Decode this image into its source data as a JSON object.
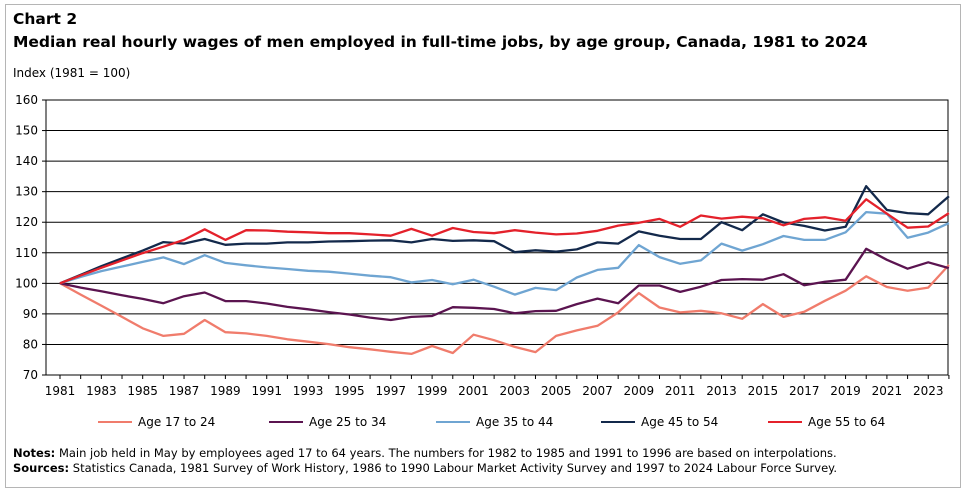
{
  "chart_label": "Chart 2",
  "title": "Median real hourly wages of men employed in full-time jobs, by age group, Canada, 1981 to 2024",
  "unit_label": "Index (1981 = 100)",
  "legend": [
    {
      "label": "Age 17 to 24",
      "color": "#f07c6c"
    },
    {
      "label": "Age 25 to 34",
      "color": "#5b1450"
    },
    {
      "label": "Age 35 to 44",
      "color": "#6fa5d2"
    },
    {
      "label": "Age 45 to 54",
      "color": "#13294b"
    },
    {
      "label": "Age 55 to 64",
      "color": "#e4212b"
    }
  ],
  "notes": {
    "notes_label": "Notes:",
    "notes_text": "Main job held in May by employees aged 17 to 64 years. The numbers for 1982 to 1985 and 1991 to 1996 are based on interpolations.",
    "sources_label": "Sources:",
    "sources_text": "Statistics Canada, 1981 Survey of Work History, 1986 to 1990 Labour Market Activity Survey and 1997 to 2024 Labour Force Survey."
  },
  "chart_data": {
    "type": "line",
    "ylim": [
      70,
      160
    ],
    "yticks": [
      70,
      80,
      90,
      100,
      110,
      120,
      130,
      140,
      150,
      160
    ],
    "x": [
      1981,
      1982,
      1983,
      1984,
      1985,
      1986,
      1987,
      1988,
      1989,
      1990,
      1991,
      1992,
      1993,
      1994,
      1995,
      1996,
      1997,
      1998,
      1999,
      2000,
      2001,
      2002,
      2003,
      2004,
      2005,
      2006,
      2007,
      2008,
      2009,
      2010,
      2011,
      2012,
      2013,
      2014,
      2015,
      2016,
      2017,
      2018,
      2019,
      2020,
      2021,
      2022,
      2023,
      2024
    ],
    "xtick_labels": [
      "1981",
      "1983",
      "1985",
      "1987",
      "1989",
      "1991",
      "1993",
      "1995",
      "1997",
      "1999",
      "2001",
      "2003",
      "2005",
      "2007",
      "2009",
      "2011",
      "2013",
      "2015",
      "2017",
      "2019",
      "2021",
      "2023"
    ],
    "grid": true,
    "legend_position": "bottom",
    "series": [
      {
        "name": "Age 17 to 24",
        "color": "#f07c6c",
        "values": [
          100,
          96.3,
          92.7,
          89.0,
          85.3,
          82.8,
          83.5,
          88.0,
          84.0,
          83.6,
          82.8,
          81.7,
          80.9,
          80.1,
          79.1,
          78.4,
          77.6,
          76.9,
          79.5,
          77.2,
          83.2,
          81.4,
          79.2,
          77.5,
          82.8,
          84.6,
          86.1,
          90.5,
          96.8,
          92.1,
          90.5,
          91.0,
          90.2,
          88.4,
          93.2,
          89.0,
          90.7,
          94.3,
          97.6,
          102.3,
          98.8,
          97.6,
          98.6,
          106.0
        ]
      },
      {
        "name": "Age 25 to 34",
        "color": "#5b1450",
        "values": [
          100,
          98.6,
          97.4,
          96.1,
          94.9,
          93.5,
          95.8,
          97.0,
          94.2,
          94.2,
          93.4,
          92.3,
          91.5,
          90.6,
          89.8,
          88.8,
          88.0,
          89.0,
          89.3,
          92.2,
          92.0,
          91.6,
          90.2,
          90.9,
          91.0,
          93.2,
          95.0,
          93.5,
          99.3,
          99.3,
          97.2,
          98.9,
          101.1,
          101.4,
          101.2,
          103.0,
          99.4,
          100.5,
          101.2,
          111.3,
          107.7,
          104.8,
          106.9,
          105.0
        ]
      },
      {
        "name": "Age 35 to 44",
        "color": "#6fa5d2",
        "values": [
          100,
          102.1,
          104.0,
          105.5,
          107.0,
          108.5,
          106.3,
          109.2,
          106.7,
          105.9,
          105.2,
          104.7,
          104.1,
          103.8,
          103.2,
          102.5,
          102.0,
          100.3,
          101.1,
          99.7,
          101.2,
          98.9,
          96.3,
          98.5,
          97.8,
          101.9,
          104.4,
          105.1,
          112.5,
          108.6,
          106.4,
          107.5,
          113.0,
          110.7,
          112.8,
          115.5,
          114.2,
          114.2,
          116.7,
          123.3,
          122.8,
          114.9,
          116.6,
          119.7
        ]
      },
      {
        "name": "Age 45 to 54",
        "color": "#13294b",
        "values": [
          100,
          102.8,
          105.6,
          108.2,
          110.7,
          113.5,
          113.0,
          114.5,
          112.6,
          113.0,
          113.0,
          113.4,
          113.4,
          113.7,
          113.8,
          114.0,
          114.1,
          113.4,
          114.5,
          113.9,
          114.1,
          113.8,
          110.2,
          110.8,
          110.4,
          111.1,
          113.4,
          113.0,
          117.0,
          115.6,
          114.5,
          114.5,
          120.0,
          117.4,
          122.6,
          119.9,
          118.8,
          117.3,
          118.5,
          131.8,
          124.0,
          123.0,
          122.6,
          128.5
        ]
      },
      {
        "name": "Age 55 to 64",
        "color": "#e4212b",
        "values": [
          100,
          102.6,
          105.1,
          107.5,
          109.9,
          112.0,
          114.2,
          117.7,
          114.2,
          117.4,
          117.3,
          116.9,
          116.7,
          116.4,
          116.4,
          116.0,
          115.6,
          117.8,
          115.6,
          118.1,
          116.8,
          116.4,
          117.4,
          116.6,
          116.0,
          116.3,
          117.2,
          118.9,
          119.8,
          121.1,
          118.5,
          122.2,
          121.2,
          121.8,
          121.3,
          119.0,
          121.1,
          121.6,
          120.5,
          127.5,
          122.8,
          118.2,
          118.6,
          123.0
        ]
      }
    ]
  }
}
